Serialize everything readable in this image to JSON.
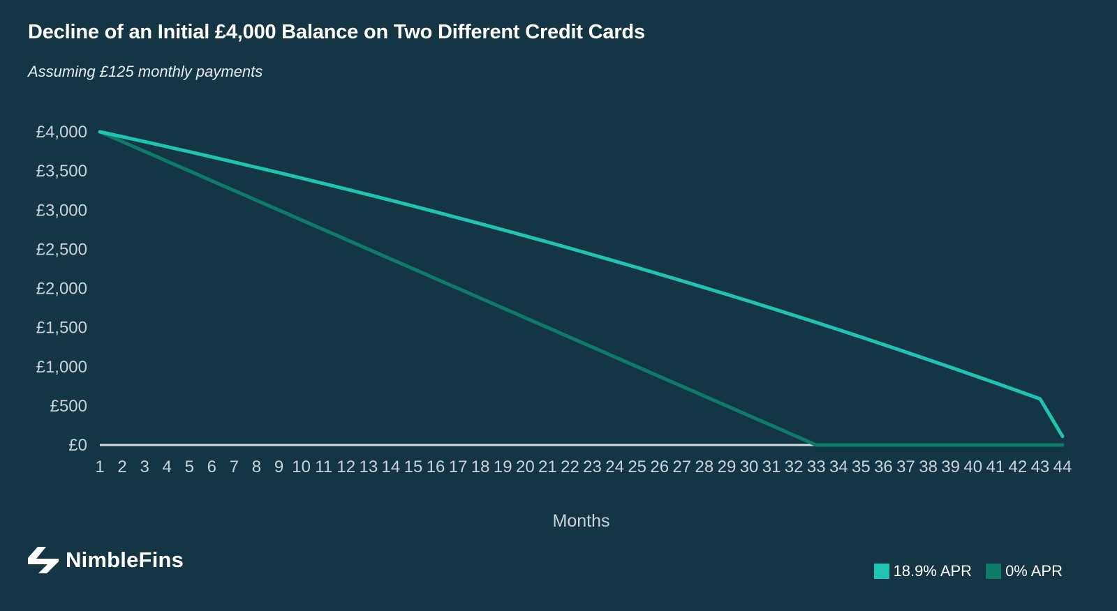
{
  "title": "Decline of an Initial £4,000 Balance on Two Different Credit Cards",
  "subtitle": "Assuming £125 monthly payments",
  "logo": {
    "name": "NimbleFins",
    "icon": "nimblefins-arrow-logo"
  },
  "colors": {
    "background": "#143544",
    "series_apr_18_9": "#1ec3b2",
    "series_apr_0": "#0e7a68",
    "baseline": "#d6dde0",
    "tick_text": "#c9d3d8"
  },
  "legend": [
    {
      "label": "18.9% APR",
      "color": "#1ec3b2"
    },
    {
      "label": "0% APR",
      "color": "#0e7a68"
    }
  ],
  "chart_data": {
    "type": "line",
    "title": "Decline of an Initial £4,000 Balance on Two Different Credit Cards",
    "subtitle": "Assuming £125 monthly payments",
    "xlabel": "Months",
    "ylabel": "",
    "x": [
      1,
      2,
      3,
      4,
      5,
      6,
      7,
      8,
      9,
      10,
      11,
      12,
      13,
      14,
      15,
      16,
      17,
      18,
      19,
      20,
      21,
      22,
      23,
      24,
      25,
      26,
      27,
      28,
      29,
      30,
      31,
      32,
      33,
      34,
      35,
      36,
      37,
      38,
      39,
      40,
      41,
      42,
      43,
      44
    ],
    "y_ticks": [
      "£0",
      "£500",
      "£1,000",
      "£1,500",
      "£2,000",
      "£2,500",
      "£3,000",
      "£3,500",
      "£4,000"
    ],
    "y_tick_values": [
      0,
      500,
      1000,
      1500,
      2000,
      2500,
      3000,
      3500,
      4000
    ],
    "ylim": [
      0,
      4000
    ],
    "grid": false,
    "legend_position": "bottom-right",
    "series": [
      {
        "name": "18.9% APR",
        "color": "#1ec3b2",
        "values": [
          4000,
          3938,
          3874,
          3810,
          3745,
          3680,
          3613,
          3546,
          3478,
          3409,
          3339,
          3269,
          3197,
          3125,
          3052,
          2977,
          2902,
          2826,
          2749,
          2671,
          2592,
          2512,
          2431,
          2349,
          2266,
          2182,
          2097,
          2011,
          1924,
          1836,
          1747,
          1656,
          1565,
          1472,
          1378,
          1283,
          1187,
          1090,
          992,
          893,
          793,
          691,
          588,
          110
        ]
      },
      {
        "name": "0% APR",
        "color": "#0e7a68",
        "values": [
          4000,
          3875,
          3750,
          3625,
          3500,
          3375,
          3250,
          3125,
          3000,
          2875,
          2750,
          2625,
          2500,
          2375,
          2250,
          2125,
          2000,
          1875,
          1750,
          1625,
          1500,
          1375,
          1250,
          1125,
          1000,
          875,
          750,
          625,
          500,
          375,
          250,
          125,
          0,
          0,
          0,
          0,
          0,
          0,
          0,
          0,
          0,
          0,
          0,
          0
        ]
      }
    ]
  }
}
